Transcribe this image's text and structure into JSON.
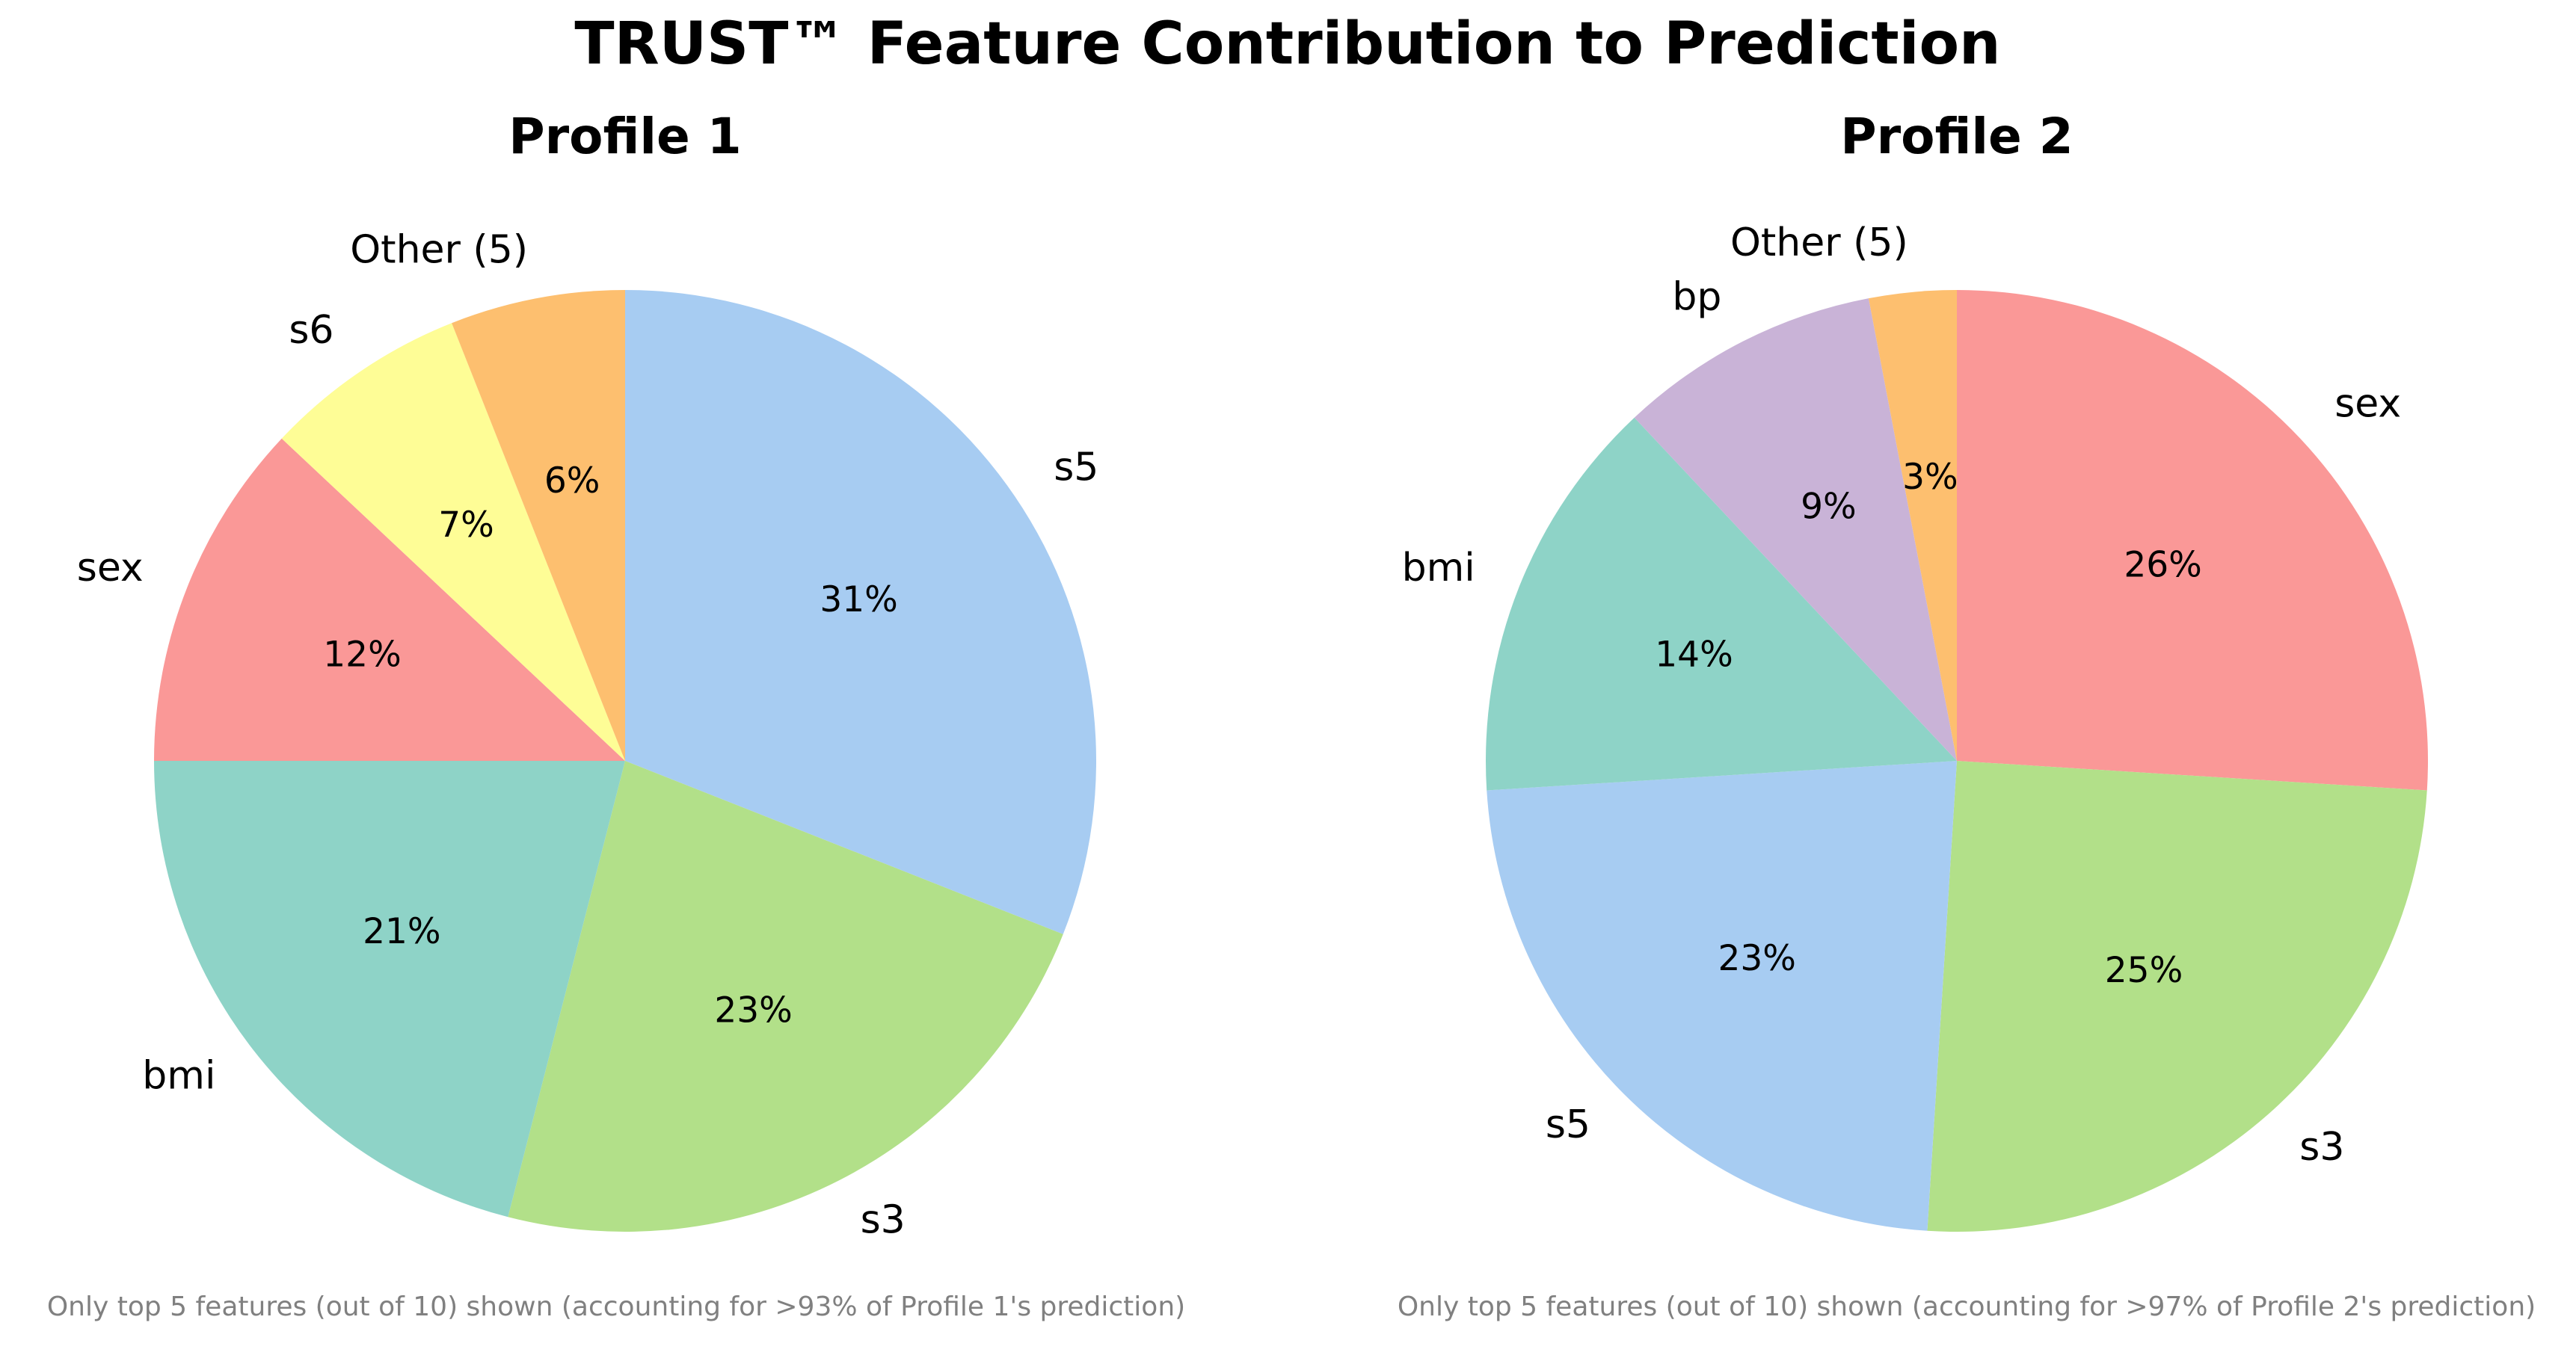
{
  "chart_data": {
    "type": "pie",
    "title": "TRUST™ Feature Contribution to Prediction",
    "charts": [
      {
        "title": "Profile 1",
        "start_angle_deg": 90,
        "direction": "clockwise",
        "slices": [
          {
            "label": "s5",
            "value": 31,
            "pct_label": "31%",
            "color": "#A7CCF2"
          },
          {
            "label": "s3",
            "value": 23,
            "pct_label": "23%",
            "color": "#B2E089"
          },
          {
            "label": "bmi",
            "value": 21,
            "pct_label": "21%",
            "color": "#8ED3C7"
          },
          {
            "label": "sex",
            "value": 12,
            "pct_label": "12%",
            "color": "#FA9897"
          },
          {
            "label": "s6",
            "value": 7,
            "pct_label": "7%",
            "color": "#FEFD96"
          },
          {
            "label": "Other (5)",
            "value": 6,
            "pct_label": "6%",
            "color": "#FDBF6F"
          }
        ],
        "footnote": "Only top 5 features (out of 10) shown (accounting for >93% of Profile 1's prediction)"
      },
      {
        "title": "Profile 2",
        "start_angle_deg": 90,
        "direction": "clockwise",
        "slices": [
          {
            "label": "sex",
            "value": 26,
            "pct_label": "26%",
            "color": "#FA9897"
          },
          {
            "label": "s3",
            "value": 25,
            "pct_label": "25%",
            "color": "#B2E089"
          },
          {
            "label": "s5",
            "value": 23,
            "pct_label": "23%",
            "color": "#A7CCF2"
          },
          {
            "label": "bmi",
            "value": 14,
            "pct_label": "14%",
            "color": "#8ED3C7"
          },
          {
            "label": "bp",
            "value": 9,
            "pct_label": "9%",
            "color": "#C9B3D7"
          },
          {
            "label": "Other (5)",
            "value": 3,
            "pct_label": "3%",
            "color": "#FDBF6F"
          }
        ],
        "footnote": "Only top 5 features (out of 10) shown (accounting for >97% of Profile 2's prediction)"
      }
    ]
  }
}
